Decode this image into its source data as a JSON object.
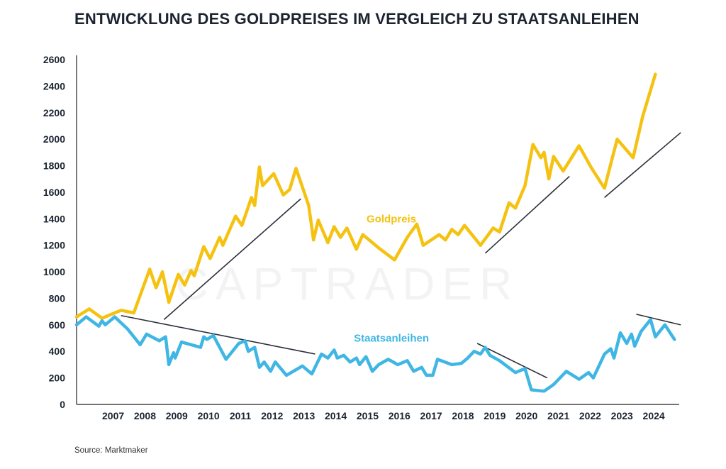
{
  "chart_data": {
    "type": "line",
    "title": "ENTWICKLUNG DES GOLDPREISES IM VERGLEICH ZU STAATSANLEIHEN",
    "watermark": "CAPTRADER",
    "source": "Source: Marktmaker",
    "xlabel": "",
    "ylabel": "",
    "ylim": [
      0,
      2600
    ],
    "xlim": [
      2006.0,
      2024.95
    ],
    "yticks": [
      0,
      200,
      400,
      600,
      800,
      1000,
      1200,
      1400,
      1600,
      1800,
      2000,
      2200,
      2400,
      2600
    ],
    "xticks": [
      2007,
      2008,
      2009,
      2010,
      2011,
      2012,
      2013,
      2014,
      2015,
      2016,
      2017,
      2018,
      2019,
      2020,
      2021,
      2022,
      2023,
      2024
    ],
    "grid": false,
    "colors": {
      "gold": "#f5c211",
      "bonds": "#3fb6e3",
      "trend": "#2b2f3a",
      "axis": "#222222"
    },
    "series": [
      {
        "name": "Goldpreis",
        "color": "#f5c211",
        "points": [
          [
            2006.0,
            660
          ],
          [
            2006.4,
            720
          ],
          [
            2006.8,
            650
          ],
          [
            2007.2,
            690
          ],
          [
            2007.4,
            710
          ],
          [
            2007.8,
            690
          ],
          [
            2008.3,
            1020
          ],
          [
            2008.5,
            880
          ],
          [
            2008.7,
            1000
          ],
          [
            2008.9,
            770
          ],
          [
            2009.2,
            980
          ],
          [
            2009.4,
            900
          ],
          [
            2009.6,
            1010
          ],
          [
            2009.7,
            970
          ],
          [
            2010.0,
            1190
          ],
          [
            2010.2,
            1100
          ],
          [
            2010.5,
            1260
          ],
          [
            2010.6,
            1200
          ],
          [
            2011.0,
            1420
          ],
          [
            2011.2,
            1350
          ],
          [
            2011.5,
            1560
          ],
          [
            2011.6,
            1500
          ],
          [
            2011.75,
            1790
          ],
          [
            2011.85,
            1650
          ],
          [
            2012.2,
            1740
          ],
          [
            2012.5,
            1580
          ],
          [
            2012.7,
            1620
          ],
          [
            2012.9,
            1780
          ],
          [
            2013.3,
            1500
          ],
          [
            2013.45,
            1240
          ],
          [
            2013.6,
            1390
          ],
          [
            2013.9,
            1220
          ],
          [
            2014.1,
            1340
          ],
          [
            2014.3,
            1260
          ],
          [
            2014.5,
            1330
          ],
          [
            2014.8,
            1170
          ],
          [
            2015.0,
            1280
          ],
          [
            2015.5,
            1180
          ],
          [
            2016.0,
            1090
          ],
          [
            2016.4,
            1260
          ],
          [
            2016.7,
            1360
          ],
          [
            2016.9,
            1200
          ],
          [
            2017.4,
            1280
          ],
          [
            2017.6,
            1240
          ],
          [
            2017.8,
            1320
          ],
          [
            2018.0,
            1280
          ],
          [
            2018.2,
            1350
          ],
          [
            2018.7,
            1200
          ],
          [
            2019.1,
            1330
          ],
          [
            2019.3,
            1300
          ],
          [
            2019.6,
            1520
          ],
          [
            2019.8,
            1480
          ],
          [
            2020.1,
            1650
          ],
          [
            2020.35,
            1960
          ],
          [
            2020.6,
            1860
          ],
          [
            2020.7,
            1900
          ],
          [
            2020.85,
            1700
          ],
          [
            2021.0,
            1870
          ],
          [
            2021.3,
            1760
          ],
          [
            2021.8,
            1950
          ],
          [
            2022.2,
            1780
          ],
          [
            2022.6,
            1630
          ],
          [
            2023.0,
            2000
          ],
          [
            2023.5,
            1860
          ],
          [
            2023.8,
            2170
          ],
          [
            2024.2,
            2490
          ]
        ]
      },
      {
        "name": "Staatsanleihen",
        "color": "#3fb6e3",
        "points": [
          [
            2006.0,
            600
          ],
          [
            2006.3,
            660
          ],
          [
            2006.7,
            590
          ],
          [
            2006.8,
            630
          ],
          [
            2006.9,
            600
          ],
          [
            2007.2,
            660
          ],
          [
            2007.6,
            570
          ],
          [
            2008.0,
            450
          ],
          [
            2008.2,
            530
          ],
          [
            2008.6,
            480
          ],
          [
            2008.8,
            510
          ],
          [
            2008.9,
            300
          ],
          [
            2009.05,
            390
          ],
          [
            2009.1,
            350
          ],
          [
            2009.3,
            470
          ],
          [
            2009.9,
            430
          ],
          [
            2010.0,
            510
          ],
          [
            2010.1,
            490
          ],
          [
            2010.3,
            520
          ],
          [
            2010.7,
            340
          ],
          [
            2011.1,
            460
          ],
          [
            2011.3,
            480
          ],
          [
            2011.4,
            400
          ],
          [
            2011.6,
            430
          ],
          [
            2011.75,
            280
          ],
          [
            2011.9,
            320
          ],
          [
            2012.1,
            250
          ],
          [
            2012.25,
            320
          ],
          [
            2012.6,
            220
          ],
          [
            2013.1,
            290
          ],
          [
            2013.4,
            230
          ],
          [
            2013.7,
            380
          ],
          [
            2013.9,
            350
          ],
          [
            2014.1,
            410
          ],
          [
            2014.2,
            350
          ],
          [
            2014.4,
            370
          ],
          [
            2014.6,
            320
          ],
          [
            2014.8,
            350
          ],
          [
            2014.9,
            300
          ],
          [
            2015.1,
            360
          ],
          [
            2015.3,
            250
          ],
          [
            2015.5,
            300
          ],
          [
            2015.8,
            340
          ],
          [
            2016.1,
            300
          ],
          [
            2016.4,
            330
          ],
          [
            2016.6,
            250
          ],
          [
            2016.85,
            280
          ],
          [
            2017.0,
            220
          ],
          [
            2017.2,
            220
          ],
          [
            2017.35,
            340
          ],
          [
            2017.8,
            300
          ],
          [
            2018.1,
            310
          ],
          [
            2018.3,
            350
          ],
          [
            2018.5,
            400
          ],
          [
            2018.7,
            380
          ],
          [
            2018.85,
            430
          ],
          [
            2019.0,
            370
          ],
          [
            2019.3,
            330
          ],
          [
            2019.8,
            240
          ],
          [
            2020.1,
            270
          ],
          [
            2020.3,
            110
          ],
          [
            2020.7,
            100
          ],
          [
            2021.0,
            150
          ],
          [
            2021.4,
            250
          ],
          [
            2021.8,
            190
          ],
          [
            2022.1,
            240
          ],
          [
            2022.25,
            200
          ],
          [
            2022.6,
            380
          ],
          [
            2022.8,
            420
          ],
          [
            2022.9,
            350
          ],
          [
            2023.1,
            540
          ],
          [
            2023.3,
            460
          ],
          [
            2023.45,
            530
          ],
          [
            2023.55,
            440
          ],
          [
            2023.75,
            550
          ],
          [
            2024.05,
            640
          ],
          [
            2024.2,
            510
          ],
          [
            2024.5,
            600
          ],
          [
            2024.8,
            490
          ]
        ]
      }
    ],
    "trendlines": [
      {
        "from": [
          2008.75,
          640
        ],
        "to": [
          2013.05,
          1550
        ]
      },
      {
        "from": [
          2007.4,
          670
        ],
        "to": [
          2013.5,
          380
        ]
      },
      {
        "from": [
          2018.85,
          1140
        ],
        "to": [
          2021.5,
          1720
        ]
      },
      {
        "from": [
          2022.6,
          1560
        ],
        "to": [
          2025.0,
          2050
        ]
      },
      {
        "from": [
          2018.6,
          460
        ],
        "to": [
          2020.8,
          200
        ]
      },
      {
        "from": [
          2023.6,
          680
        ],
        "to": [
          2025.0,
          600
        ]
      }
    ],
    "annotations": [
      {
        "text": "Goldpreis",
        "series": "Goldpreis",
        "at": [
          2015.9,
          1400
        ]
      },
      {
        "text": "Staatsanleihen",
        "series": "Staatsanleihen",
        "at": [
          2015.9,
          500
        ]
      }
    ]
  }
}
